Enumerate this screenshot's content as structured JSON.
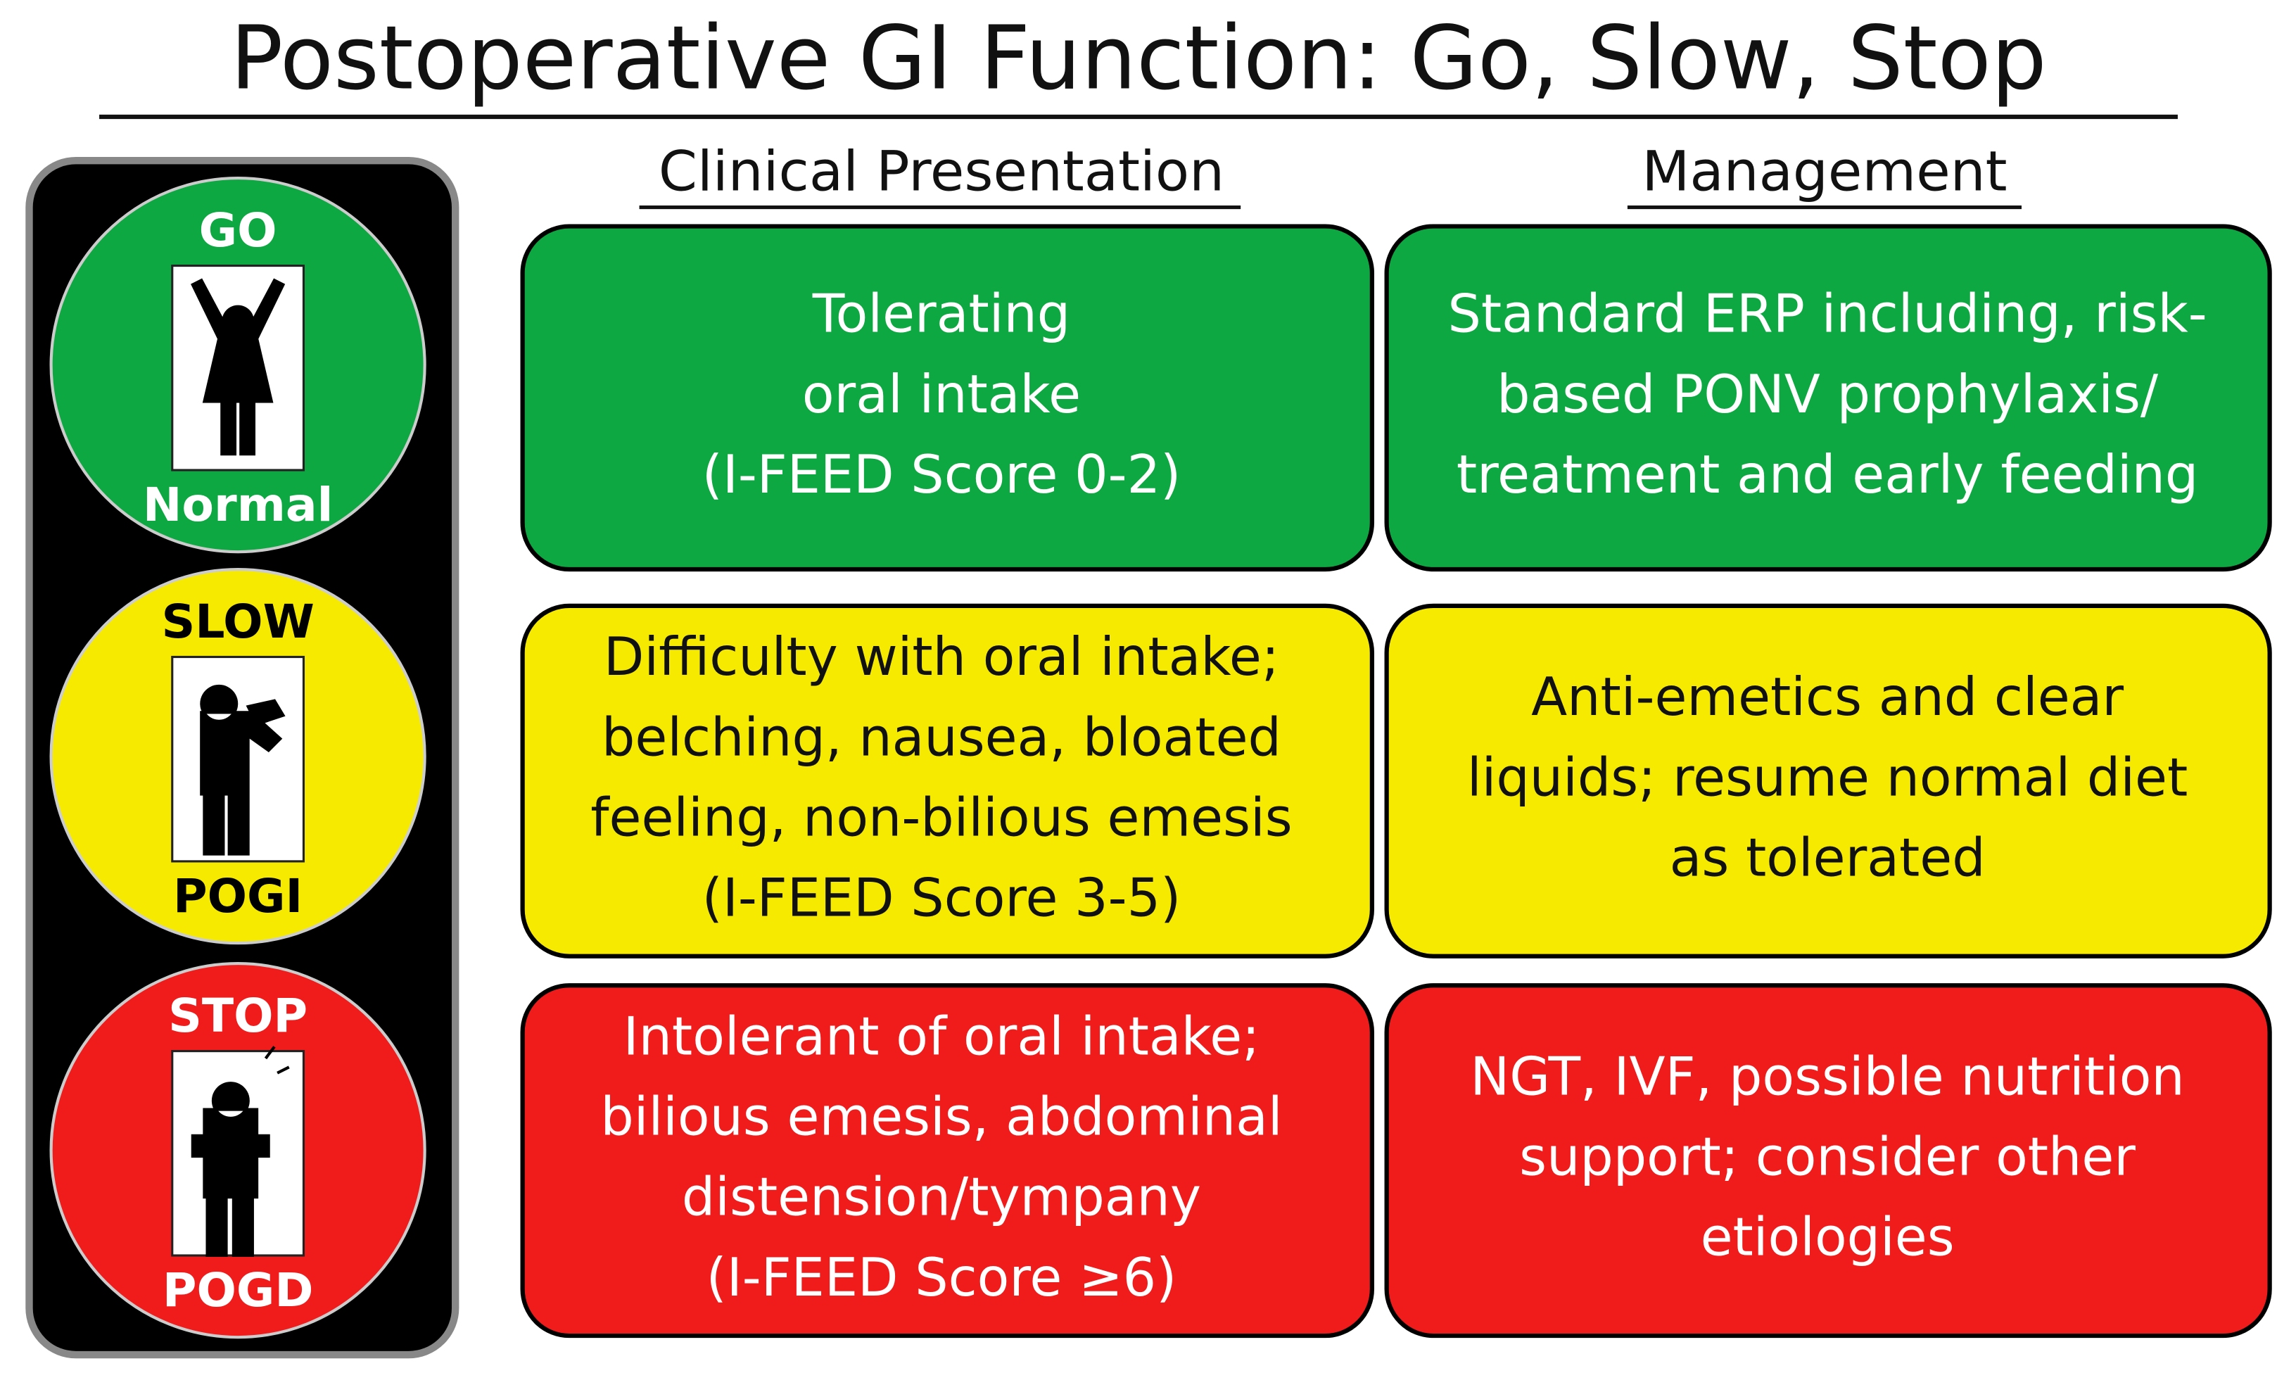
{
  "title": "Postoperative GI Function: Go, Slow, Stop",
  "headers": [
    "Clinical Presentation",
    "Management"
  ],
  "rows": [
    {
      "signal": "GO",
      "state": "Normal",
      "color": "#0ea843",
      "text_color": "#ffffff",
      "label_color": "#ffffff",
      "presentation": [
        "Tolerating",
        "oral intake",
        "(I-FEED Score 0-2)"
      ],
      "management": [
        "Standard ERP including, risk-",
        "based PONV prophylaxis/",
        "treatment and early feeding"
      ]
    },
    {
      "signal": "SLOW",
      "state": "POGI",
      "color": "#f5ea00",
      "text_color": "#111111",
      "label_color": "#000000",
      "presentation": [
        "Difficulty with oral intake;",
        "belching, nausea, bloated",
        "feeling, non-bilious emesis",
        "(I-FEED Score 3-5)"
      ],
      "management": [
        "Anti-emetics and clear",
        "liquids; resume normal diet",
        "as tolerated"
      ]
    },
    {
      "signal": "STOP",
      "state": "POGD",
      "color": "#f01c1c",
      "text_color": "#ffffff",
      "label_color": "#ffffff",
      "presentation": [
        "Intolerant of oral intake;",
        "bilious emesis, abdominal",
        "distension/tympany",
        "(I-FEED Score ≥6)"
      ],
      "management": [
        "NGT, IVF, possible nutrition",
        "support; consider other",
        "etiologies"
      ]
    }
  ]
}
